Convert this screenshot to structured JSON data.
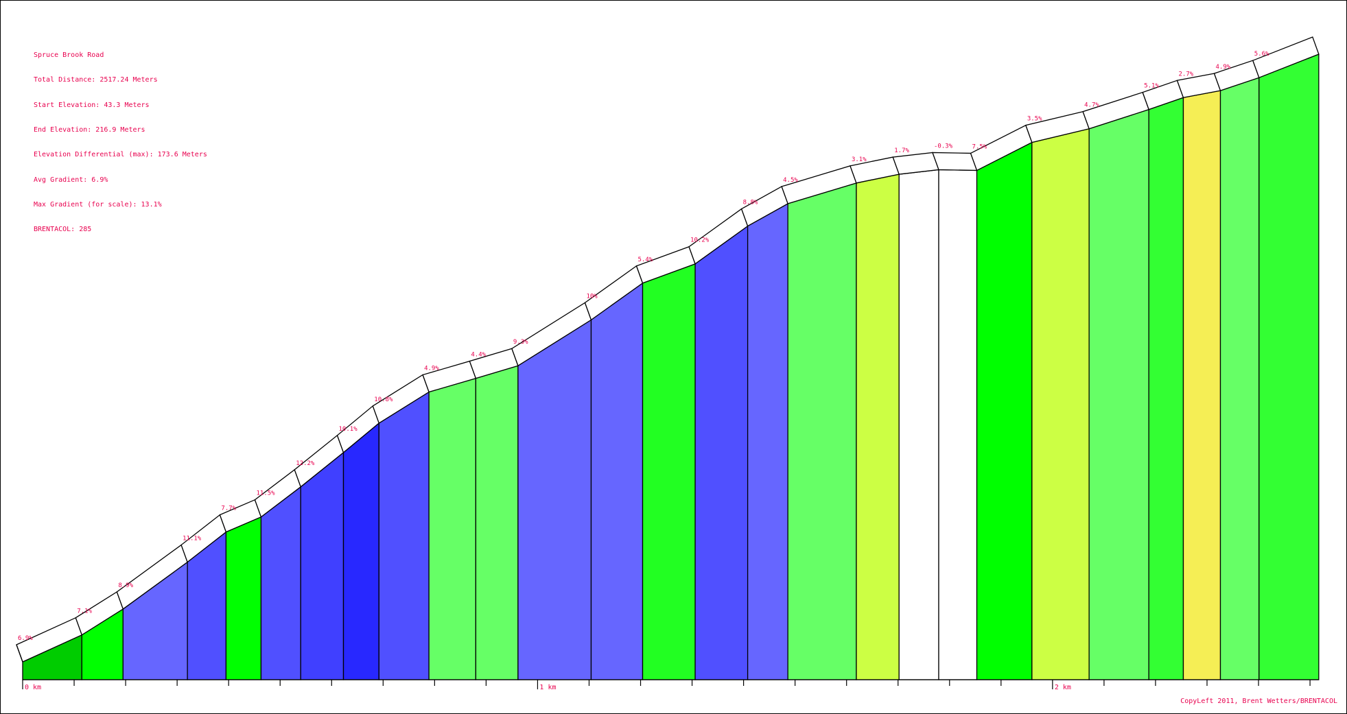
{
  "info": {
    "lines": [
      "Spruce Brook Road",
      "Total Distance: 2517.24 Meters",
      "Start Elevation: 43.3 Meters",
      "End Elevation: 216.9 Meters",
      "Elevation Differential (max): 173.6 Meters",
      "Avg Gradient: 6.9%",
      "Max Gradient (for scale): 13.1%",
      "BRENTACOL: 285"
    ]
  },
  "copyleft": "CopyLeft 2011, Brent Wetters/BRENTACOL",
  "chart_data": {
    "type": "area",
    "x_unit": "km",
    "x_ticks": [
      "0 km",
      "1 km",
      "2 km"
    ],
    "xlim": [
      0,
      2.5172
    ],
    "ylim_elevation_m": [
      43.3,
      216.9
    ],
    "segments": [
      {
        "start_km": 0.0,
        "end_km": 0.115,
        "start_elev": 43.3,
        "end_elev": 51.0,
        "gradient_label": "6.9%",
        "color": "#00cc00"
      },
      {
        "start_km": 0.115,
        "end_km": 0.195,
        "start_elev": 51.0,
        "end_elev": 58.4,
        "gradient_label": "7.1%",
        "color": "#00ff00"
      },
      {
        "start_km": 0.195,
        "end_km": 0.32,
        "start_elev": 58.4,
        "end_elev": 71.8,
        "gradient_label": "8.9%",
        "color": "#6666ff"
      },
      {
        "start_km": 0.32,
        "end_km": 0.395,
        "start_elev": 71.8,
        "end_elev": 80.4,
        "gradient_label": "11.1%",
        "color": "#5050ff"
      },
      {
        "start_km": 0.395,
        "end_km": 0.463,
        "start_elev": 80.4,
        "end_elev": 84.7,
        "gradient_label": "7.7%",
        "color": "#00ff00"
      },
      {
        "start_km": 0.463,
        "end_km": 0.54,
        "start_elev": 84.7,
        "end_elev": 93.3,
        "gradient_label": "11.5%",
        "color": "#5050ff"
      },
      {
        "start_km": 0.54,
        "end_km": 0.623,
        "start_elev": 93.3,
        "end_elev": 103.1,
        "gradient_label": "12.2%",
        "color": "#4040ff"
      },
      {
        "start_km": 0.623,
        "end_km": 0.692,
        "start_elev": 103.1,
        "end_elev": 111.5,
        "gradient_label": "10.1%",
        "color": "#2828ff"
      },
      {
        "start_km": 0.692,
        "end_km": 0.789,
        "start_elev": 111.5,
        "end_elev": 120.4,
        "gradient_label": "10.8%",
        "color": "#5050ff"
      },
      {
        "start_km": 0.789,
        "end_km": 0.88,
        "start_elev": 120.4,
        "end_elev": 124.3,
        "gradient_label": "4.9%",
        "color": "#66ff66"
      },
      {
        "start_km": 0.88,
        "end_km": 0.962,
        "start_elev": 124.3,
        "end_elev": 127.9,
        "gradient_label": "4.4%",
        "color": "#66ff66"
      },
      {
        "start_km": 0.962,
        "end_km": 1.104,
        "start_elev": 127.9,
        "end_elev": 141.0,
        "gradient_label": "9.3%",
        "color": "#6666ff"
      },
      {
        "start_km": 1.104,
        "end_km": 1.204,
        "start_elev": 141.0,
        "end_elev": 151.5,
        "gradient_label": "10%",
        "color": "#6666ff"
      },
      {
        "start_km": 1.204,
        "end_km": 1.306,
        "start_elev": 151.5,
        "end_elev": 157.0,
        "gradient_label": "5.4%",
        "color": "#22ff22"
      },
      {
        "start_km": 1.306,
        "end_km": 1.408,
        "start_elev": 157.0,
        "end_elev": 167.8,
        "gradient_label": "10.2%",
        "color": "#5050ff"
      },
      {
        "start_km": 1.408,
        "end_km": 1.486,
        "start_elev": 167.8,
        "end_elev": 174.2,
        "gradient_label": "8.8%",
        "color": "#6666ff"
      },
      {
        "start_km": 1.486,
        "end_km": 1.619,
        "start_elev": 174.2,
        "end_elev": 180.1,
        "gradient_label": "4.5%",
        "color": "#66ff66"
      },
      {
        "start_km": 1.619,
        "end_km": 1.702,
        "start_elev": 180.1,
        "end_elev": 182.6,
        "gradient_label": "3.1%",
        "color": "#ccff44"
      },
      {
        "start_km": 1.702,
        "end_km": 1.779,
        "start_elev": 182.6,
        "end_elev": 183.9,
        "gradient_label": "1.7%",
        "color": "#ffffff"
      },
      {
        "start_km": 1.779,
        "end_km": 1.853,
        "start_elev": 183.9,
        "end_elev": 183.7,
        "gradient_label": "-0.3%",
        "color": "#ffffff"
      },
      {
        "start_km": 1.853,
        "end_km": 1.96,
        "start_elev": 183.7,
        "end_elev": 191.7,
        "gradient_label": "7.5%",
        "color": "#00ff00"
      },
      {
        "start_km": 1.96,
        "end_km": 2.071,
        "start_elev": 191.7,
        "end_elev": 195.6,
        "gradient_label": "3.5%",
        "color": "#ccff44"
      },
      {
        "start_km": 2.071,
        "end_km": 2.187,
        "start_elev": 195.6,
        "end_elev": 201.1,
        "gradient_label": "4.7%",
        "color": "#66ff66"
      },
      {
        "start_km": 2.187,
        "end_km": 2.254,
        "start_elev": 201.1,
        "end_elev": 204.5,
        "gradient_label": "5.1%",
        "color": "#33ff33"
      },
      {
        "start_km": 2.254,
        "end_km": 2.326,
        "start_elev": 204.5,
        "end_elev": 206.5,
        "gradient_label": "2.7%",
        "color": "#f5ee55"
      },
      {
        "start_km": 2.326,
        "end_km": 2.401,
        "start_elev": 206.5,
        "end_elev": 210.2,
        "gradient_label": "4.9%",
        "color": "#66ff66"
      },
      {
        "start_km": 2.401,
        "end_km": 2.517,
        "start_elev": 210.2,
        "end_elev": 216.9,
        "gradient_label": "5.6%",
        "color": "#33ff33"
      }
    ]
  }
}
